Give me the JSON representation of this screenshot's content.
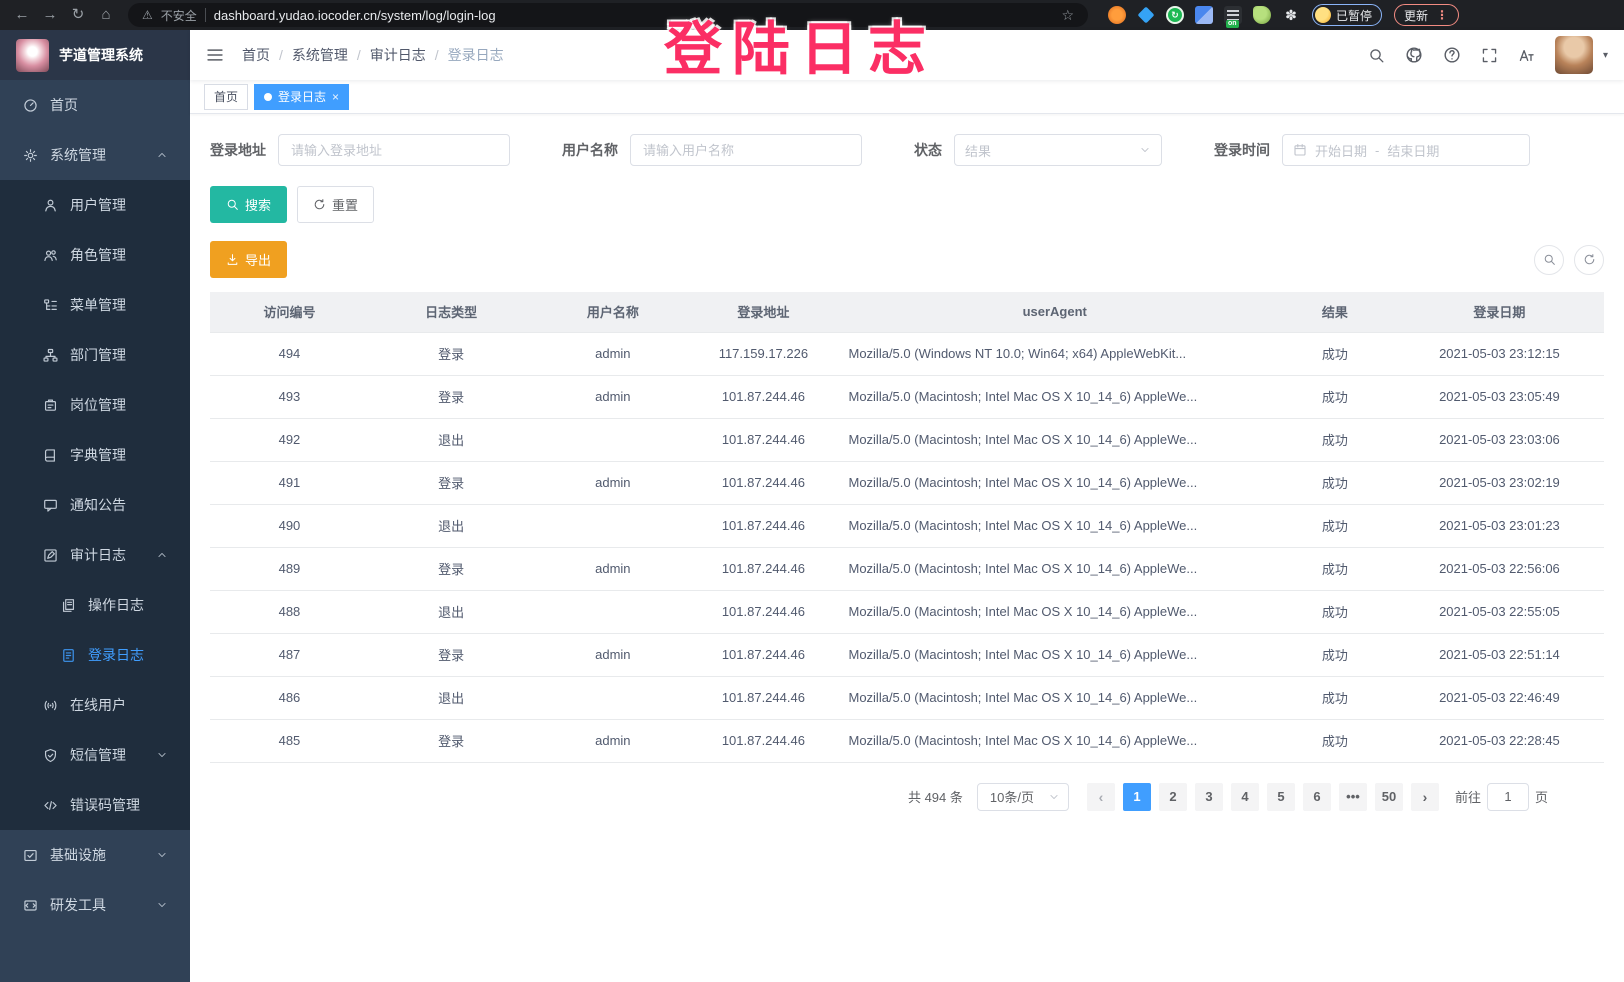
{
  "colors": {
    "accent": "#409EFF",
    "search_button": "#23b8a2",
    "export_button": "#f0a020",
    "overlay_pink": "#fb2e64",
    "sidebar_bg": "#304156",
    "submenu_bg": "#1f2d3d"
  },
  "overlay": {
    "text": "登陆日志"
  },
  "browser": {
    "security_label": "不安全",
    "url": "dashboard.yudao.iocoder.cn/system/log/login-log",
    "extension_on_badge": "on",
    "paused_badge": "已暂停",
    "update_button": "更新"
  },
  "sidebar": {
    "title": "芋道管理系统",
    "items": [
      {
        "label": "首页",
        "icon": "home-icon",
        "level": 0
      },
      {
        "label": "系统管理",
        "icon": "gear-icon",
        "level": 0,
        "arrow": "up"
      },
      {
        "label": "用户管理",
        "icon": "user-icon",
        "level": 1
      },
      {
        "label": "角色管理",
        "icon": "roles-icon",
        "level": 1
      },
      {
        "label": "菜单管理",
        "icon": "menu-tree-icon",
        "level": 1
      },
      {
        "label": "部门管理",
        "icon": "org-tree-icon",
        "level": 1
      },
      {
        "label": "岗位管理",
        "icon": "post-icon",
        "level": 1
      },
      {
        "label": "字典管理",
        "icon": "dict-icon",
        "level": 1
      },
      {
        "label": "通知公告",
        "icon": "notice-icon",
        "level": 1
      },
      {
        "label": "审计日志",
        "icon": "audit-icon",
        "level": 1,
        "arrow": "up"
      },
      {
        "label": "操作日志",
        "icon": "operation-log-icon",
        "level": 2
      },
      {
        "label": "登录日志",
        "icon": "login-log-icon",
        "level": 2,
        "active": true
      },
      {
        "label": "在线用户",
        "icon": "online-users-icon",
        "level": 1
      },
      {
        "label": "短信管理",
        "icon": "sms-icon",
        "level": 1,
        "arrow": "down"
      },
      {
        "label": "错误码管理",
        "icon": "error-code-icon",
        "level": 1
      },
      {
        "label": "基础设施",
        "icon": "infrastructure-icon",
        "level": 0,
        "arrow": "down"
      },
      {
        "label": "研发工具",
        "icon": "devtools-icon",
        "level": 0,
        "arrow": "down"
      }
    ]
  },
  "breadcrumb": {
    "items": [
      "首页",
      "系统管理",
      "审计日志",
      "登录日志"
    ]
  },
  "tabs": [
    {
      "label": "首页",
      "active": false
    },
    {
      "label": "登录日志",
      "active": true
    }
  ],
  "filters": {
    "login_address_label": "登录地址",
    "login_address_placeholder": "请输入登录地址",
    "username_label": "用户名称",
    "username_placeholder": "请输入用户名称",
    "status_label": "状态",
    "status_placeholder": "结果",
    "login_time_label": "登录时间",
    "date_start_placeholder": "开始日期",
    "date_separator": "-",
    "date_end_placeholder": "结束日期",
    "search_button": "搜索",
    "reset_button": "重置",
    "export_button": "导出"
  },
  "table": {
    "columns": [
      {
        "key": "id",
        "label": "访问编号"
      },
      {
        "key": "type",
        "label": "日志类型"
      },
      {
        "key": "username",
        "label": "用户名称"
      },
      {
        "key": "ip",
        "label": "登录地址"
      },
      {
        "key": "ua",
        "label": "userAgent"
      },
      {
        "key": "result",
        "label": "结果"
      },
      {
        "key": "date",
        "label": "登录日期"
      }
    ],
    "rows": [
      [
        "494",
        "登录",
        "admin",
        "117.159.17.226",
        "Mozilla/5.0 (Windows NT 10.0; Win64; x64) AppleWebKit...",
        "成功",
        "2021-05-03 23:12:15"
      ],
      [
        "493",
        "登录",
        "admin",
        "101.87.244.46",
        "Mozilla/5.0 (Macintosh; Intel Mac OS X 10_14_6) AppleWe...",
        "成功",
        "2021-05-03 23:05:49"
      ],
      [
        "492",
        "退出",
        "",
        "101.87.244.46",
        "Mozilla/5.0 (Macintosh; Intel Mac OS X 10_14_6) AppleWe...",
        "成功",
        "2021-05-03 23:03:06"
      ],
      [
        "491",
        "登录",
        "admin",
        "101.87.244.46",
        "Mozilla/5.0 (Macintosh; Intel Mac OS X 10_14_6) AppleWe...",
        "成功",
        "2021-05-03 23:02:19"
      ],
      [
        "490",
        "退出",
        "",
        "101.87.244.46",
        "Mozilla/5.0 (Macintosh; Intel Mac OS X 10_14_6) AppleWe...",
        "成功",
        "2021-05-03 23:01:23"
      ],
      [
        "489",
        "登录",
        "admin",
        "101.87.244.46",
        "Mozilla/5.0 (Macintosh; Intel Mac OS X 10_14_6) AppleWe...",
        "成功",
        "2021-05-03 22:56:06"
      ],
      [
        "488",
        "退出",
        "",
        "101.87.244.46",
        "Mozilla/5.0 (Macintosh; Intel Mac OS X 10_14_6) AppleWe...",
        "成功",
        "2021-05-03 22:55:05"
      ],
      [
        "487",
        "登录",
        "admin",
        "101.87.244.46",
        "Mozilla/5.0 (Macintosh; Intel Mac OS X 10_14_6) AppleWe...",
        "成功",
        "2021-05-03 22:51:14"
      ],
      [
        "486",
        "退出",
        "",
        "101.87.244.46",
        "Mozilla/5.0 (Macintosh; Intel Mac OS X 10_14_6) AppleWe...",
        "成功",
        "2021-05-03 22:46:49"
      ],
      [
        "485",
        "登录",
        "admin",
        "101.87.244.46",
        "Mozilla/5.0 (Macintosh; Intel Mac OS X 10_14_6) AppleWe...",
        "成功",
        "2021-05-03 22:28:45"
      ]
    ]
  },
  "pagination": {
    "total": "共 494 条",
    "page_size": "10条/页",
    "prev": "‹",
    "next": "›",
    "pages": [
      {
        "label": "1",
        "active": true
      },
      {
        "label": "2"
      },
      {
        "label": "3"
      },
      {
        "label": "4"
      },
      {
        "label": "5"
      },
      {
        "label": "6"
      },
      {
        "label": "•••"
      },
      {
        "label": "50"
      }
    ],
    "goto_label": "前往",
    "goto_value": "1",
    "goto_suffix": "页"
  }
}
